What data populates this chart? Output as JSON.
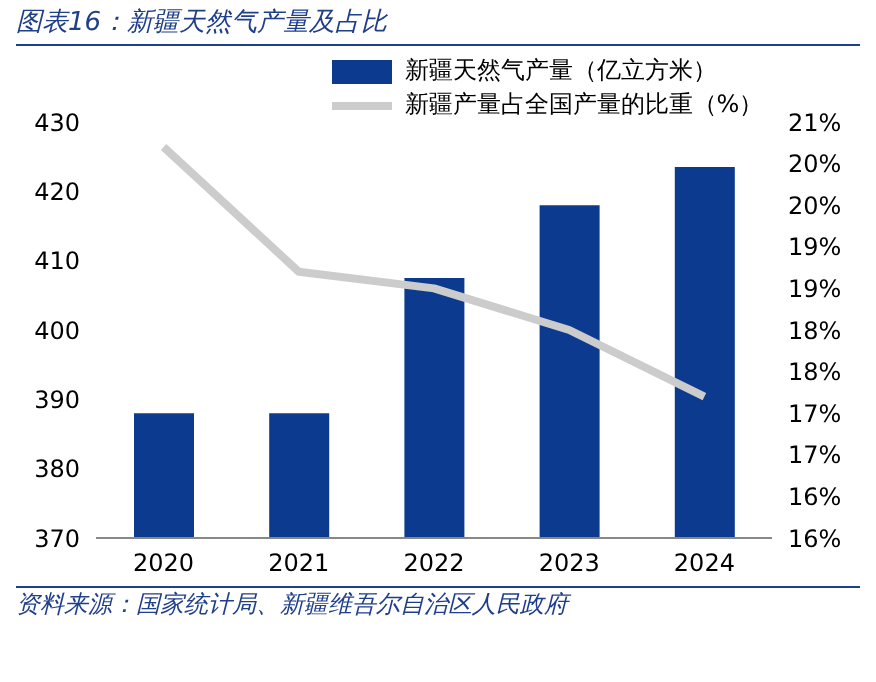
{
  "chart_data": {
    "type": "bar",
    "title": "图表16：新疆天然气产量及占比",
    "categories": [
      "2020",
      "2021",
      "2022",
      "2023",
      "2024"
    ],
    "series": [
      {
        "name": "新疆天然气产量（亿立方米）",
        "color": "#0b3a8f",
        "values": [
          388,
          388,
          407.5,
          418,
          423.5
        ]
      },
      {
        "name": "新疆产量占全国产量的比重（%）",
        "type": "line",
        "axis": "y2",
        "color": "#cccccc",
        "values": [
          20.7,
          19.2,
          19.0,
          18.5,
          17.7
        ]
      }
    ],
    "ylim": [
      370,
      430
    ],
    "yticks": [
      370,
      380,
      390,
      400,
      410,
      420,
      430
    ],
    "y2lim": [
      16,
      21
    ],
    "y2ticks": [
      {
        "value": 16,
        "label": "16%"
      },
      {
        "value": 16.5,
        "label": "16%"
      },
      {
        "value": 17,
        "label": "17%"
      },
      {
        "value": 17.5,
        "label": "17%"
      },
      {
        "value": 18,
        "label": "18%"
      },
      {
        "value": 18.5,
        "label": "18%"
      },
      {
        "value": 19,
        "label": "19%"
      },
      {
        "value": 19.5,
        "label": "19%"
      },
      {
        "value": 20,
        "label": "20%"
      },
      {
        "value": 20.5,
        "label": "20%"
      },
      {
        "value": 21,
        "label": "21%"
      }
    ],
    "legend": "top",
    "marker": "none",
    "annotations": [
      "资料来源：国家统计局、新疆维吾尔自治区人民政府"
    ]
  }
}
